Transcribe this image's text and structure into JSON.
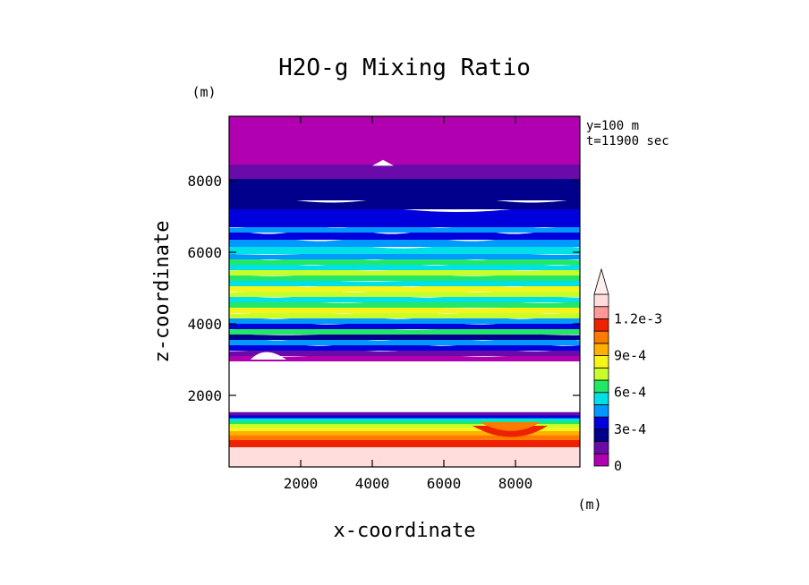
{
  "chart_data": {
    "type": "heatmap",
    "title": "H2O-g Mixing Ratio",
    "xlabel": "x-coordinate",
    "ylabel": "z-coordinate",
    "x_unit": "(m)",
    "y_unit": "(m)",
    "info_lines": [
      "y=100 m",
      "t=11900 sec"
    ],
    "xlim": [
      0,
      9800
    ],
    "ylim": [
      0,
      9800
    ],
    "xticks": [
      2000,
      4000,
      6000,
      8000
    ],
    "yticks": [
      2000,
      4000,
      6000,
      8000
    ],
    "xtick_labels": [
      "2000",
      "4000",
      "6000",
      "8000"
    ],
    "ytick_labels": [
      "2000",
      "4000",
      "6000",
      "8000"
    ],
    "colorbar": {
      "levels": [
        0,
        0.0001,
        0.0002,
        0.0003,
        0.0004,
        0.0005,
        0.0006,
        0.0007,
        0.0008,
        0.0009,
        0.001,
        0.0011,
        0.0012
      ],
      "labels": [
        "0",
        "3e-4",
        "6e-4",
        "9e-4",
        "1.2e-3"
      ],
      "label_levels": [
        0,
        0.0003,
        0.0006,
        0.0009,
        0.0012
      ],
      "colors": [
        "#b000b0",
        "#6a0aa8",
        "#00008c",
        "#0000dd",
        "#0099ff",
        "#00e0e6",
        "#22e866",
        "#c8ff2a",
        "#f5f51a",
        "#ffb000",
        "#ff7a00",
        "#ee2200",
        "#ff9999",
        "#ffdddd"
      ]
    },
    "layers": [
      {
        "z": [
          0,
          600
        ],
        "value": 0.00125
      },
      {
        "z": [
          600,
          800
        ],
        "value": 0.00115
      },
      {
        "z": [
          800,
          930
        ],
        "value": 0.00105
      },
      {
        "z": [
          930,
          1050
        ],
        "value": 0.00095
      },
      {
        "z": [
          1050,
          1150
        ],
        "value": 0.00085
      },
      {
        "z": [
          1150,
          1250
        ],
        "value": 0.00075
      },
      {
        "z": [
          1250,
          1330
        ],
        "value": 0.00065
      },
      {
        "z": [
          1330,
          1410
        ],
        "value": 0.00055
      },
      {
        "z": [
          1410,
          1490
        ],
        "value": 0.00035
      },
      {
        "z": [
          1490,
          1580
        ],
        "value": 0.00015
      },
      {
        "z": [
          1580,
          3000
        ],
        "value": null
      },
      {
        "z": [
          3000,
          3150
        ],
        "value": 5e-05
      },
      {
        "z": [
          3150,
          3300
        ],
        "value": 0.00015
      },
      {
        "z": [
          3300,
          3450
        ],
        "value": 0.00035
      },
      {
        "z": [
          3450,
          3600
        ],
        "value": 0.00045
      },
      {
        "z": [
          3600,
          3750
        ],
        "value": 0.00025
      },
      {
        "z": [
          3750,
          3900
        ],
        "value": 0.00065
      },
      {
        "z": [
          3900,
          4050
        ],
        "value": 0.00035
      },
      {
        "z": [
          4050,
          4200
        ],
        "value": 0.00045
      },
      {
        "z": [
          4200,
          4350
        ],
        "value": 0.00075
      },
      {
        "z": [
          4350,
          4500
        ],
        "value": 0.00085
      },
      {
        "z": [
          4500,
          4650
        ],
        "value": 0.00065
      },
      {
        "z": [
          4650,
          4800
        ],
        "value": 0.00055
      },
      {
        "z": [
          4800,
          4950
        ],
        "value": 0.00075
      },
      {
        "z": [
          4950,
          5100
        ],
        "value": 0.00085
      },
      {
        "z": [
          5100,
          5250
        ],
        "value": 0.00055
      },
      {
        "z": [
          5250,
          5400
        ],
        "value": 0.00065
      },
      {
        "z": [
          5400,
          5550
        ],
        "value": 0.00075
      },
      {
        "z": [
          5550,
          5700
        ],
        "value": 0.00055
      },
      {
        "z": [
          5700,
          5850
        ],
        "value": 0.00065
      },
      {
        "z": [
          5850,
          6000
        ],
        "value": 0.00045
      },
      {
        "z": [
          6000,
          6200
        ],
        "value": 0.00055
      },
      {
        "z": [
          6200,
          6400
        ],
        "value": 0.00045
      },
      {
        "z": [
          6400,
          6600
        ],
        "value": 0.00035
      },
      {
        "z": [
          6600,
          6750
        ],
        "value": 0.00045
      },
      {
        "z": [
          6750,
          7250
        ],
        "value": 0.00035
      },
      {
        "z": [
          7250,
          7500
        ],
        "value": 0.00025
      },
      {
        "z": [
          7500,
          8100
        ],
        "value": 0.00025
      },
      {
        "z": [
          8100,
          8500
        ],
        "value": 0.00015
      },
      {
        "z": [
          8500,
          9800
        ],
        "value": 5e-05
      }
    ]
  }
}
